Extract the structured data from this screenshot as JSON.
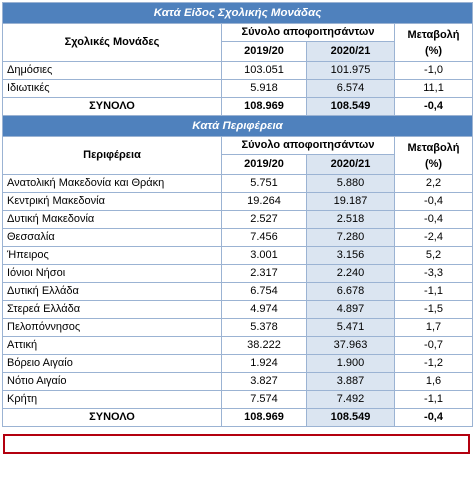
{
  "section_school": "Κατά Είδος Σχολικής Μονάδας",
  "section_region": "Κατά Περιφέρεια",
  "headers": {
    "graduates_total": "Σύνολο αποφοιτησάντων",
    "school_units": "Σχολικές Μονάδες",
    "region": "Περιφέρεια",
    "year1": "2019/20",
    "year2": "2020/21",
    "change": "Μεταβολή",
    "change_unit": "(%)"
  },
  "school_rows": [
    {
      "label": "Δημόσιες",
      "y1": "103.051",
      "y2": "101.975",
      "change": "-1,0"
    },
    {
      "label": "Ιδιωτικές",
      "y1": "5.918",
      "y2": "6.574",
      "change": "11,1"
    }
  ],
  "school_total": {
    "label": "ΣΥΝΟΛΟ",
    "y1": "108.969",
    "y2": "108.549",
    "change": "-0,4"
  },
  "region_rows": [
    {
      "label": "Ανατολική Μακεδονία και Θράκη",
      "y1": "5.751",
      "y2": "5.880",
      "change": "2,2"
    },
    {
      "label": "Κεντρική Μακεδονία",
      "y1": "19.264",
      "y2": "19.187",
      "change": "-0,4"
    },
    {
      "label": "Δυτική Μακεδονία",
      "y1": "2.527",
      "y2": "2.518",
      "change": "-0,4"
    },
    {
      "label": "Θεσσαλία",
      "y1": "7.456",
      "y2": "7.280",
      "change": "-2,4"
    },
    {
      "label": "Ήπειρος",
      "y1": "3.001",
      "y2": "3.156",
      "change": "5,2"
    },
    {
      "label": "Ιόνιοι Νήσοι",
      "y1": "2.317",
      "y2": "2.240",
      "change": "-3,3"
    },
    {
      "label": "Δυτική Ελλάδα",
      "y1": "6.754",
      "y2": "6.678",
      "change": "-1,1"
    },
    {
      "label": "Στερεά Ελλάδα",
      "y1": "4.974",
      "y2": "4.897",
      "change": "-1,5"
    },
    {
      "label": "Πελοπόννησος",
      "y1": "5.378",
      "y2": "5.471",
      "change": "1,7"
    },
    {
      "label": "Αττική",
      "y1": "38.222",
      "y2": "37.963",
      "change": "-0,7"
    },
    {
      "label": "Βόρειο Αιγαίο",
      "y1": "1.924",
      "y2": "1.900",
      "change": "-1,2"
    },
    {
      "label": "Νότιο Αιγαίο",
      "y1": "3.827",
      "y2": "3.887",
      "change": "1,6"
    },
    {
      "label": "Κρήτη",
      "y1": "7.574",
      "y2": "7.492",
      "change": "-1,1"
    }
  ],
  "region_total": {
    "label": "ΣΥΝΟΛΟ",
    "y1": "108.969",
    "y2": "108.549",
    "change": "-0,4"
  },
  "colors": {
    "header_bg": "#4f81bd",
    "highlight_col": "#dbe5f1",
    "highlight_box": "#b3000f"
  }
}
